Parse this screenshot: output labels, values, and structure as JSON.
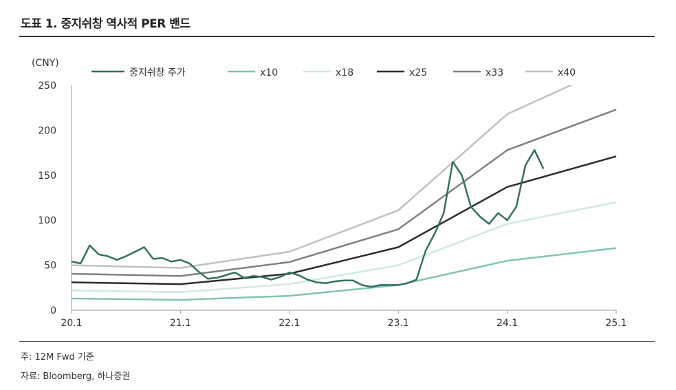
{
  "title": "도표 1. 중지쉬창 역사적 PER 밴드",
  "notes": [
    "주: 12M Fwd 기준",
    "자료: Bloomberg, 하나증권"
  ],
  "chart_data": {
    "type": "line",
    "ylabel": "(CNY)",
    "ylim": [
      0,
      250
    ],
    "yticks": [
      0,
      50,
      100,
      150,
      200,
      250
    ],
    "xticks": [
      "20.1",
      "21.1",
      "22.1",
      "23.1",
      "24.1",
      "25.1"
    ],
    "xlim": [
      2020.0,
      2025.0
    ],
    "legend": "top",
    "grid": false,
    "series": [
      {
        "name": "중지쉬창 주가",
        "color": "#336e63",
        "x": [
          "2020-01",
          "2020-02",
          "2020-03",
          "2020-04",
          "2020-05",
          "2020-06",
          "2020-07",
          "2020-08",
          "2020-09",
          "2020-10",
          "2020-11",
          "2020-12",
          "2021-01",
          "2021-02",
          "2021-03",
          "2021-04",
          "2021-05",
          "2021-06",
          "2021-07",
          "2021-08",
          "2021-09",
          "2021-10",
          "2021-11",
          "2021-12",
          "2022-01",
          "2022-02",
          "2022-03",
          "2022-04",
          "2022-05",
          "2022-06",
          "2022-07",
          "2022-08",
          "2022-09",
          "2022-10",
          "2022-11",
          "2022-12",
          "2023-01",
          "2023-02",
          "2023-03",
          "2023-04",
          "2023-05",
          "2023-06",
          "2023-07",
          "2023-08",
          "2023-09",
          "2023-10",
          "2023-11",
          "2023-12",
          "2024-01",
          "2024-02",
          "2024-03",
          "2024-04",
          "2024-05"
        ],
        "values": [
          54,
          52,
          72,
          62,
          60,
          56,
          60,
          65,
          70,
          57,
          58,
          54,
          56,
          52,
          43,
          35,
          36,
          39,
          42,
          36,
          38,
          37,
          34,
          37,
          42,
          39,
          34,
          31,
          30,
          32,
          33,
          33,
          28,
          26,
          28,
          28,
          28,
          30,
          34,
          66,
          85,
          108,
          165,
          150,
          115,
          104,
          96,
          108,
          100,
          115,
          161,
          178,
          157
        ]
      },
      {
        "name": "x10",
        "color": "#7fc4b5",
        "x": [
          "2020-01",
          "2021-01",
          "2022-01",
          "2023-01",
          "2024-01",
          "2025-01"
        ],
        "values": [
          13,
          11.5,
          16,
          28,
          55,
          69
        ]
      },
      {
        "name": "x18",
        "color": "#cfe9e2",
        "x": [
          "2020-01",
          "2021-01",
          "2022-01",
          "2023-01",
          "2024-01",
          "2025-01"
        ],
        "values": [
          22,
          20,
          29,
          50,
          96,
          120
        ]
      },
      {
        "name": "x25",
        "color": "#2b2b2b",
        "x": [
          "2020-01",
          "2021-01",
          "2022-01",
          "2023-01",
          "2024-01",
          "2025-01"
        ],
        "values": [
          31,
          29,
          40.5,
          70,
          137,
          171
        ]
      },
      {
        "name": "x33",
        "color": "#808080",
        "x": [
          "2020-01",
          "2021-01",
          "2022-01",
          "2023-01",
          "2024-01",
          "2025-01"
        ],
        "values": [
          40.5,
          38,
          53.5,
          90,
          178,
          223
        ]
      },
      {
        "name": "x40",
        "color": "#c0c0c0",
        "x": [
          "2020-01",
          "2021-01",
          "2022-01",
          "2023-01",
          "2024-01",
          "2025-01"
        ],
        "values": [
          50,
          47,
          65,
          111,
          218,
          273
        ]
      }
    ]
  }
}
